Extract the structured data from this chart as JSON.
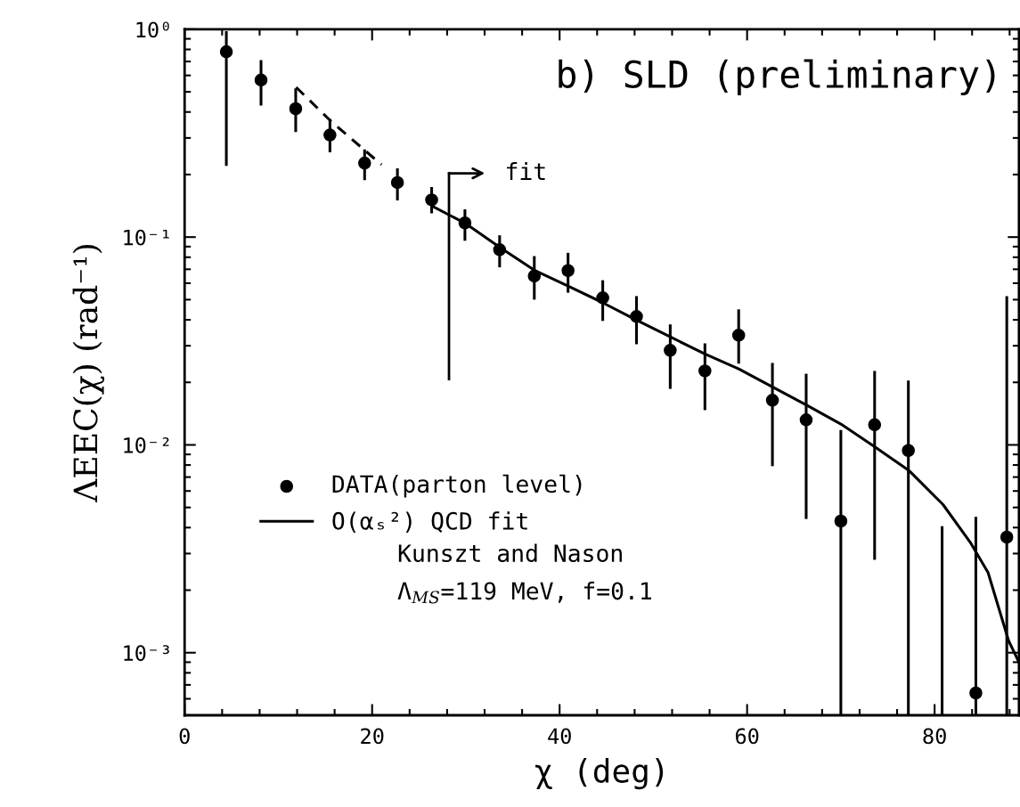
{
  "chart_data": {
    "type": "scatter",
    "title": "b) SLD (preliminary)",
    "xlabel": "χ (deg)",
    "ylabel": "ΛEEC(χ) (rad⁻¹)",
    "series": [
      {
        "name": "DATA(parton level)",
        "color": "#000000",
        "marker": "circle",
        "x": [
          4.45,
          8.15,
          11.85,
          15.5,
          19.2,
          22.7,
          26.35,
          29.9,
          33.6,
          37.3,
          40.9,
          44.6,
          48.2,
          51.8,
          55.5,
          59.1,
          62.7,
          66.3,
          70.0,
          73.6,
          77.2,
          80.8,
          84.4,
          87.7
        ],
        "values": [
          0.78,
          0.57,
          0.415,
          0.31,
          0.227,
          0.183,
          0.151,
          0.117,
          0.087,
          0.065,
          0.069,
          0.051,
          0.0415,
          0.0285,
          0.0227,
          0.0337,
          0.0164,
          0.0132,
          0.0043,
          0.0125,
          0.0094,
          null,
          0.00064,
          0.0036
        ],
        "errors": [
          [
            0.22,
            0.98
          ],
          [
            0.43,
            0.71
          ],
          [
            0.32,
            0.52
          ],
          [
            0.256,
            0.37
          ],
          [
            0.188,
            0.264
          ],
          [
            0.15,
            0.214
          ],
          [
            0.13,
            0.174
          ],
          [
            0.096,
            0.136
          ],
          [
            0.0715,
            0.102
          ],
          [
            0.05,
            0.081
          ],
          [
            0.054,
            0.084
          ],
          [
            0.0395,
            0.062
          ],
          [
            0.0305,
            0.052
          ],
          [
            0.0186,
            0.038
          ],
          [
            0.0147,
            0.0308
          ],
          [
            0.0246,
            0.0449
          ],
          [
            0.0079,
            0.0248
          ],
          [
            0.0044,
            0.022
          ],
          [
            0.0005,
            0.0118
          ],
          [
            0.0028,
            0.0227
          ],
          [
            0.0005,
            0.0204
          ],
          null,
          [
            0.0005,
            0.0045
          ],
          [
            0.0005,
            0.052
          ]
        ]
      },
      {
        "name": "O(αₛ²) QCD fit",
        "type": "line",
        "color": "#000000",
        "line_style": "solid",
        "x": [
          26.4,
          30.0,
          33.7,
          37.3,
          40.9,
          44.3,
          48.2,
          51.8,
          55.5,
          59.1,
          62.7,
          66.4,
          70.0,
          73.6,
          77.3,
          80.9,
          83.8,
          85.7,
          87.9,
          89.0
        ],
        "values": [
          0.141,
          0.116,
          0.0888,
          0.0693,
          0.0581,
          0.0491,
          0.0399,
          0.0331,
          0.0274,
          0.0232,
          0.019,
          0.0155,
          0.0126,
          0.0098,
          0.0075,
          0.00516,
          0.0034,
          0.00243,
          0.00114,
          0.0009
        ]
      },
      {
        "type": "line",
        "color": "#000000",
        "line_style": "dashed",
        "x": [
          11.9,
          15.5,
          21.0
        ],
        "values": [
          0.526,
          0.365,
          0.223
        ]
      },
      {
        "type": "line",
        "color": "#000000",
        "line_style": "solid",
        "x": [
          80.8,
          80.8
        ],
        "values": [
          0.0005,
          0.004
        ]
      }
    ],
    "log": true,
    "xlim": [
      0,
      89
    ],
    "ylim": [
      0.0005,
      1
    ],
    "xticks": [
      0,
      20,
      40,
      60,
      80
    ],
    "yticks": [
      {
        "value": 1,
        "label": "10⁰"
      },
      {
        "value": 0.1,
        "label": "10⁻¹"
      },
      {
        "value": 0.01,
        "label": "10⁻²"
      },
      {
        "value": 0.001,
        "label": "10⁻³"
      }
    ],
    "grid": false,
    "legend": "bottom left",
    "ref_lines": [
      {
        "axis": "x",
        "value": 28.2,
        "label": "fit"
      }
    ],
    "annotations": [
      "Kunszt and Nason",
      "Λ$_{MS}$=119 MeV, f=0.1"
    ]
  }
}
